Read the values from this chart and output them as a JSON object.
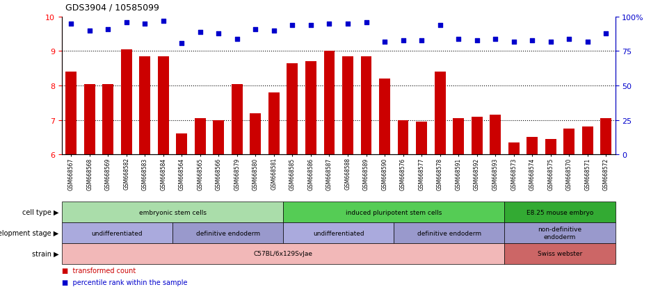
{
  "title": "GDS3904 / 10585099",
  "samples": [
    "GSM668567",
    "GSM668568",
    "GSM668569",
    "GSM668582",
    "GSM668583",
    "GSM668584",
    "GSM668564",
    "GSM668565",
    "GSM668566",
    "GSM668579",
    "GSM668580",
    "GSM668581",
    "GSM668585",
    "GSM668586",
    "GSM668587",
    "GSM668588",
    "GSM668589",
    "GSM668590",
    "GSM668576",
    "GSM668577",
    "GSM668578",
    "GSM668591",
    "GSM668592",
    "GSM668593",
    "GSM668573",
    "GSM668574",
    "GSM668575",
    "GSM668570",
    "GSM668571",
    "GSM668572"
  ],
  "bar_values": [
    8.4,
    8.05,
    8.05,
    9.05,
    8.85,
    8.85,
    6.6,
    7.05,
    7.0,
    8.05,
    7.2,
    7.8,
    8.65,
    8.7,
    9.0,
    8.85,
    8.85,
    8.2,
    7.0,
    6.95,
    8.4,
    7.05,
    7.1,
    7.15,
    6.35,
    6.5,
    6.45,
    6.75,
    6.8,
    7.05
  ],
  "dot_percentiles": [
    95,
    90,
    91,
    96,
    95,
    97,
    81,
    89,
    88,
    84,
    91,
    90,
    94,
    94,
    95,
    95,
    96,
    82,
    83,
    83,
    94,
    84,
    83,
    84,
    82,
    83,
    82,
    84,
    82,
    88
  ],
  "ylim_left": [
    6,
    10
  ],
  "ylim_right": [
    0,
    100
  ],
  "bar_color": "#cc0000",
  "dot_color": "#0000cc",
  "cell_type_groups": [
    {
      "label": "embryonic stem cells",
      "start": 0,
      "end": 12,
      "color": "#aaddaa"
    },
    {
      "label": "induced pluripotent stem cells",
      "start": 12,
      "end": 24,
      "color": "#55cc55"
    },
    {
      "label": "E8.25 mouse embryo",
      "start": 24,
      "end": 30,
      "color": "#33aa33"
    }
  ],
  "dev_stage_groups": [
    {
      "label": "undifferentiated",
      "start": 0,
      "end": 6,
      "color": "#aaaadd"
    },
    {
      "label": "definitive endoderm",
      "start": 6,
      "end": 12,
      "color": "#9999cc"
    },
    {
      "label": "undifferentiated",
      "start": 12,
      "end": 18,
      "color": "#aaaadd"
    },
    {
      "label": "definitive endoderm",
      "start": 18,
      "end": 24,
      "color": "#9999cc"
    },
    {
      "label": "non-definitive\nendoderm",
      "start": 24,
      "end": 30,
      "color": "#9999cc"
    }
  ],
  "strain_groups": [
    {
      "label": "C57BL/6x129SvJae",
      "start": 0,
      "end": 24,
      "color": "#f2b8b8"
    },
    {
      "label": "Swiss webster",
      "start": 24,
      "end": 30,
      "color": "#cc6666"
    }
  ],
  "row_labels": [
    "cell type",
    "development stage",
    "strain"
  ]
}
